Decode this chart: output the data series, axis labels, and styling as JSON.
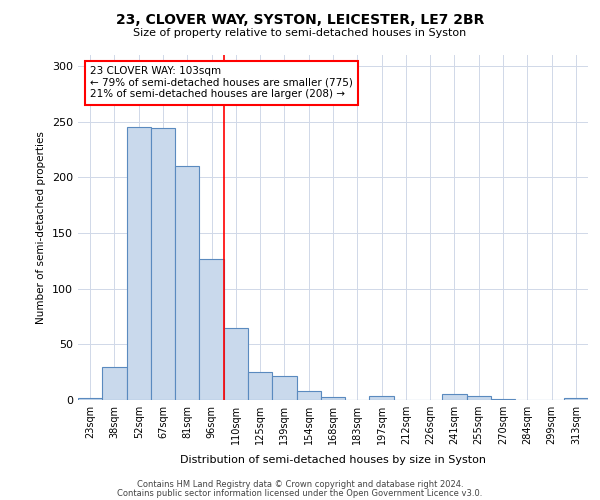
{
  "title_line1": "23, CLOVER WAY, SYSTON, LEICESTER, LE7 2BR",
  "title_line2": "Size of property relative to semi-detached houses in Syston",
  "xlabel": "Distribution of semi-detached houses by size in Syston",
  "ylabel": "Number of semi-detached properties",
  "categories": [
    "23sqm",
    "38sqm",
    "52sqm",
    "67sqm",
    "81sqm",
    "96sqm",
    "110sqm",
    "125sqm",
    "139sqm",
    "154sqm",
    "168sqm",
    "183sqm",
    "197sqm",
    "212sqm",
    "226sqm",
    "241sqm",
    "255sqm",
    "270sqm",
    "284sqm",
    "299sqm",
    "313sqm"
  ],
  "values": [
    2,
    30,
    245,
    244,
    210,
    127,
    65,
    25,
    22,
    8,
    3,
    0,
    4,
    0,
    0,
    5,
    4,
    1,
    0,
    0,
    2
  ],
  "bar_color": "#c9d9ec",
  "bar_edge_color": "#5a8abf",
  "bar_linewidth": 0.8,
  "property_line_x": 5.5,
  "annotation_text": "23 CLOVER WAY: 103sqm\n← 79% of semi-detached houses are smaller (775)\n21% of semi-detached houses are larger (208) →",
  "annotation_box_color": "white",
  "annotation_box_edge": "red",
  "annotation_line_color": "red",
  "grid_color": "#d0d8e8",
  "background_color": "white",
  "footer_line1": "Contains HM Land Registry data © Crown copyright and database right 2024.",
  "footer_line2": "Contains public sector information licensed under the Open Government Licence v3.0.",
  "ylim": [
    0,
    310
  ],
  "yticks": [
    0,
    50,
    100,
    150,
    200,
    250,
    300
  ]
}
